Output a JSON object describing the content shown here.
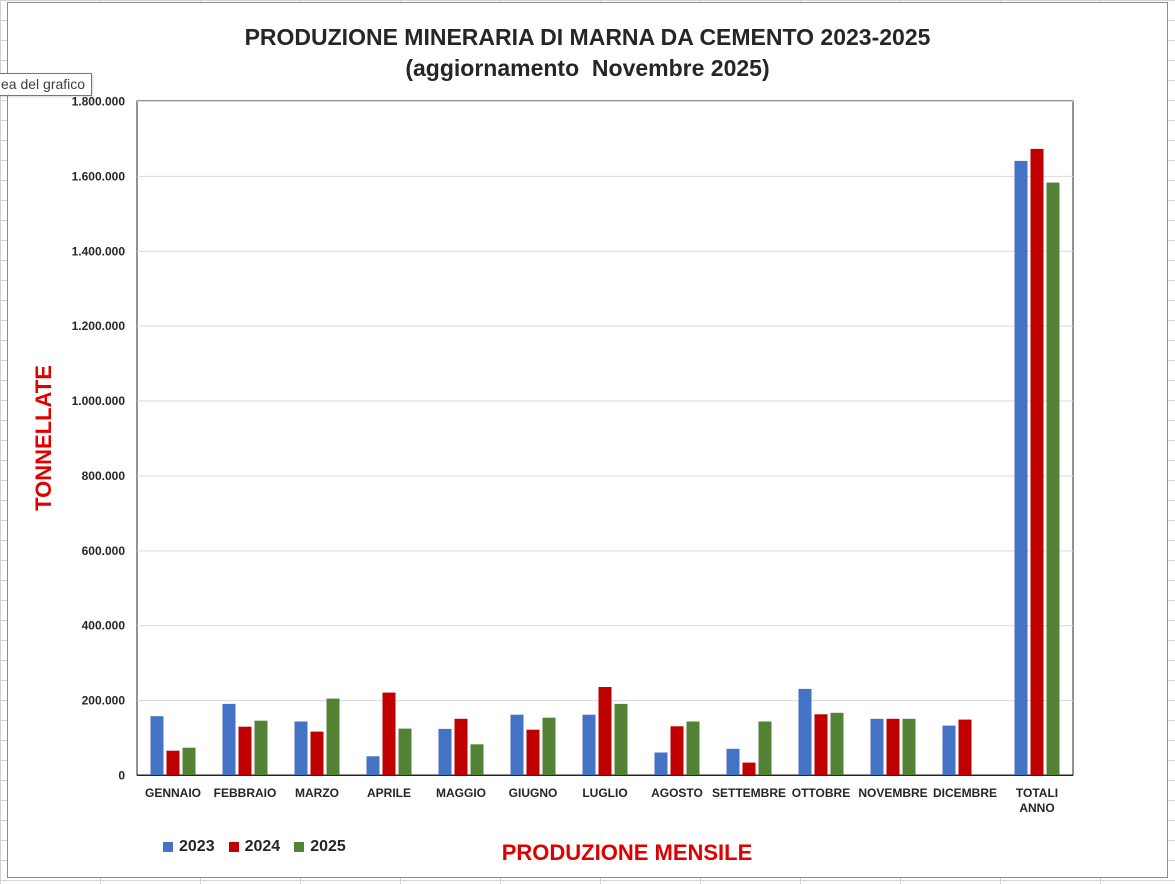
{
  "tooltip": "ea del grafico",
  "chart_data": {
    "type": "bar",
    "title": [
      "PRODUZIONE MINERARIA DI MARNA DA CEMENTO 2023-2025",
      "(aggiornamento  Novembre 2025)"
    ],
    "xlabel": "PRODUZIONE MENSILE",
    "ylabel": "TONNELLATE",
    "ylim": [
      0,
      1800000
    ],
    "yticks": [
      0,
      200000,
      400000,
      600000,
      800000,
      1000000,
      1200000,
      1400000,
      1600000,
      1800000
    ],
    "yticklabels": [
      "0",
      "200.000",
      "400.000",
      "600.000",
      "800.000",
      "1.000.000",
      "1.200.000",
      "1.400.000",
      "1.600.000",
      "1.800.000"
    ],
    "grid": true,
    "legend_position": "bottom-left",
    "categories": [
      [
        "GENNAIO"
      ],
      [
        "FEBBRAIO"
      ],
      [
        "MARZO"
      ],
      [
        "APRILE"
      ],
      [
        "MAGGIO"
      ],
      [
        "GIUGNO"
      ],
      [
        "LUGLIO"
      ],
      [
        "AGOSTO"
      ],
      [
        "SETTEMBRE"
      ],
      [
        "OTTOBRE"
      ],
      [
        "NOVEMBRE"
      ],
      [
        "DICEMBRE"
      ],
      [
        "TOTALI",
        "ANNO"
      ]
    ],
    "series": [
      {
        "name": "2023",
        "color": "#4472c4",
        "values": [
          157000,
          190000,
          143000,
          50000,
          123000,
          161000,
          161000,
          60000,
          70000,
          230000,
          150000,
          132000,
          1640000
        ]
      },
      {
        "name": "2024",
        "color": "#c00000",
        "values": [
          65000,
          129000,
          116000,
          220000,
          150000,
          121000,
          235000,
          130000,
          33000,
          162000,
          150000,
          148000,
          1672000
        ]
      },
      {
        "name": "2025",
        "color": "#548235",
        "values": [
          73000,
          145000,
          204000,
          124000,
          82000,
          153000,
          190000,
          143000,
          143000,
          166000,
          150000,
          null,
          1582000
        ]
      }
    ]
  }
}
